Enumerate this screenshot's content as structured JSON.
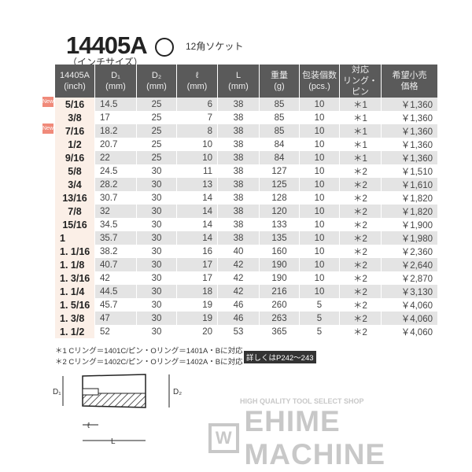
{
  "title": "14405A",
  "subtitle": "（インチサイズ）",
  "socket_icon": "12-point-socket-icon",
  "socket_label": "12角ソケット",
  "headers": [
    [
      "14405A",
      "(inch)"
    ],
    [
      "D₁",
      "(mm)"
    ],
    [
      "D₂",
      "(mm)"
    ],
    [
      "ℓ",
      "(mm)"
    ],
    [
      "L",
      "(mm)"
    ],
    [
      "重量",
      "(g)"
    ],
    [
      "包装個数",
      "(pcs.)"
    ],
    [
      "対応",
      "リング・ピン"
    ],
    [
      "希望小売",
      "価格"
    ]
  ],
  "new_badge": "New",
  "rows": [
    [
      "5/16",
      "14.5",
      "25",
      "6",
      "38",
      "85",
      "10",
      "＊1",
      "￥1,360",
      true
    ],
    [
      "3/8",
      "17",
      "25",
      "7",
      "38",
      "85",
      "10",
      "＊1",
      "￥1,360",
      false
    ],
    [
      "7/16",
      "18.2",
      "25",
      "8",
      "38",
      "85",
      "10",
      "＊1",
      "￥1,360",
      true
    ],
    [
      "1/2",
      "20.7",
      "25",
      "10",
      "38",
      "84",
      "10",
      "＊1",
      "￥1,360",
      false
    ],
    [
      "9/16",
      "22",
      "25",
      "10",
      "38",
      "84",
      "10",
      "＊1",
      "￥1,360",
      false
    ],
    [
      "5/8",
      "24.5",
      "30",
      "11",
      "38",
      "127",
      "10",
      "＊2",
      "￥1,510",
      false
    ],
    [
      "3/4",
      "28.2",
      "30",
      "13",
      "38",
      "125",
      "10",
      "＊2",
      "￥1,610",
      false
    ],
    [
      "13/16",
      "30.7",
      "30",
      "14",
      "38",
      "128",
      "10",
      "＊2",
      "￥1,820",
      false
    ],
    [
      "7/8",
      "32",
      "30",
      "14",
      "38",
      "120",
      "10",
      "＊2",
      "￥1,820",
      false
    ],
    [
      "15/16",
      "34.5",
      "30",
      "14",
      "38",
      "133",
      "10",
      "＊2",
      "￥1,900",
      false
    ],
    [
      "1",
      "35.7",
      "30",
      "14",
      "38",
      "135",
      "10",
      "＊2",
      "￥1,980",
      false
    ],
    [
      "1. 1/16",
      "38.2",
      "30",
      "16",
      "40",
      "160",
      "10",
      "＊2",
      "￥2,360",
      false
    ],
    [
      "1. 1/8",
      "40.7",
      "30",
      "17",
      "42",
      "190",
      "10",
      "＊2",
      "￥2,640",
      false
    ],
    [
      "1. 3/16",
      "42",
      "30",
      "17",
      "42",
      "190",
      "10",
      "＊2",
      "￥2,870",
      false
    ],
    [
      "1. 1/4",
      "44.5",
      "30",
      "18",
      "42",
      "216",
      "10",
      "＊2",
      "￥3,130",
      false
    ],
    [
      "1. 5/16",
      "45.7",
      "30",
      "19",
      "46",
      "260",
      "5",
      "＊2",
      "￥4,060",
      false
    ],
    [
      "1. 3/8",
      "47",
      "30",
      "19",
      "46",
      "263",
      "5",
      "＊2",
      "￥4,060",
      false
    ],
    [
      "1. 1/2",
      "52",
      "30",
      "20",
      "53",
      "365",
      "5",
      "＊2",
      "￥4,060",
      false
    ]
  ],
  "notes": [
    "＊1 Cリング＝1401C/ピン・Oリング＝1401A・Bに対応",
    "＊2 Cリング＝1402C/ピン・Oリング＝1402A・Bに対応"
  ],
  "reference": "詳しくはP242～243",
  "diagram": {
    "d1": "D₁",
    "d2": "D₂",
    "l_small": "ℓ",
    "l_big": "L"
  },
  "watermark": {
    "tagline": "HIGH QUALITY TOOL SELECT SHOP",
    "name": "EHIME MACHINE",
    "mark": "W"
  }
}
